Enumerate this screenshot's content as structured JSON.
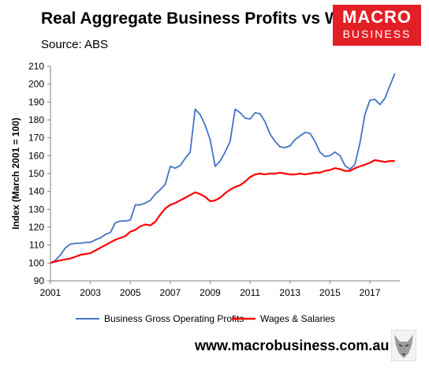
{
  "header": {
    "title": "Real Aggregate Business Profits vs Wages",
    "source": "Source: ABS"
  },
  "logo": {
    "line1": "MACRO",
    "line2": "BUSINESS",
    "color": "#e31f26"
  },
  "footer": {
    "website": "www.macrobusiness.com.au"
  },
  "chart_data": {
    "type": "line",
    "ylabel": "Index (March 2001 = 100)",
    "xlabel": "",
    "xlim": [
      2001,
      2018.5
    ],
    "ylim": [
      90,
      210
    ],
    "yticks": [
      90,
      100,
      110,
      120,
      130,
      140,
      150,
      160,
      170,
      180,
      190,
      200,
      210
    ],
    "xticks": [
      2001,
      2003,
      2005,
      2007,
      2009,
      2011,
      2013,
      2015,
      2017
    ],
    "grid": false,
    "legend": "bottom",
    "series": [
      {
        "name": "Business Gross Operating Profits",
        "color": "#4472c4",
        "x": [
          2001.0,
          2001.25,
          2001.5,
          2001.75,
          2002.0,
          2002.25,
          2002.5,
          2002.75,
          2003.0,
          2003.25,
          2003.5,
          2003.75,
          2004.0,
          2004.25,
          2004.5,
          2004.75,
          2005.0,
          2005.25,
          2005.5,
          2005.75,
          2006.0,
          2006.25,
          2006.5,
          2006.75,
          2007.0,
          2007.25,
          2007.5,
          2007.75,
          2008.0,
          2008.25,
          2008.5,
          2008.75,
          2009.0,
          2009.25,
          2009.5,
          2009.75,
          2010.0,
          2010.25,
          2010.5,
          2010.75,
          2011.0,
          2011.25,
          2011.5,
          2011.75,
          2012.0,
          2012.25,
          2012.5,
          2012.75,
          2013.0,
          2013.25,
          2013.5,
          2013.75,
          2014.0,
          2014.25,
          2014.5,
          2014.75,
          2015.0,
          2015.25,
          2015.5,
          2015.75,
          2016.0,
          2016.25,
          2016.5,
          2016.75,
          2017.0,
          2017.25,
          2017.5,
          2017.75,
          2018.0,
          2018.25
        ],
        "values": [
          100,
          101.5,
          104.5,
          108.5,
          110.5,
          111,
          111,
          111.5,
          111.5,
          113,
          114,
          116,
          117,
          122.5,
          123.5,
          123.5,
          124,
          132.5,
          132.5,
          133.5,
          135,
          138.5,
          141,
          144,
          154,
          153,
          154.5,
          158.5,
          162,
          186,
          183,
          177,
          169,
          154,
          157,
          162,
          168,
          186,
          184,
          181,
          180.5,
          184,
          183.5,
          179,
          172,
          168,
          165,
          164.5,
          165.5,
          169,
          171,
          173,
          172.5,
          168,
          162,
          159.5,
          160,
          162,
          160,
          154.5,
          152.5,
          155,
          167,
          183,
          191,
          191.5,
          188.5,
          192,
          199,
          206
        ]
      },
      {
        "name": "Wages & Salaries",
        "color": "#ff0000",
        "x": [
          2001.0,
          2001.25,
          2001.5,
          2001.75,
          2002.0,
          2002.25,
          2002.5,
          2002.75,
          2003.0,
          2003.25,
          2003.5,
          2003.75,
          2004.0,
          2004.25,
          2004.5,
          2004.75,
          2005.0,
          2005.25,
          2005.5,
          2005.75,
          2006.0,
          2006.25,
          2006.5,
          2006.75,
          2007.0,
          2007.25,
          2007.5,
          2007.75,
          2008.0,
          2008.25,
          2008.5,
          2008.75,
          2009.0,
          2009.25,
          2009.5,
          2009.75,
          2010.0,
          2010.25,
          2010.5,
          2010.75,
          2011.0,
          2011.25,
          2011.5,
          2011.75,
          2012.0,
          2012.25,
          2012.5,
          2012.75,
          2013.0,
          2013.25,
          2013.5,
          2013.75,
          2014.0,
          2014.25,
          2014.5,
          2014.75,
          2015.0,
          2015.25,
          2015.5,
          2015.75,
          2016.0,
          2016.25,
          2016.5,
          2016.75,
          2017.0,
          2017.25,
          2017.5,
          2017.75,
          2018.0,
          2018.25
        ],
        "values": [
          100,
          100.8,
          101.5,
          102,
          102.5,
          103.5,
          104.5,
          105,
          105.5,
          107,
          108.5,
          110,
          111.5,
          113,
          114,
          115,
          117.5,
          118.5,
          120.5,
          121.5,
          121,
          123,
          127,
          130.5,
          132.5,
          133.5,
          135,
          136.5,
          138,
          139.5,
          138.5,
          137,
          134.5,
          135,
          136.5,
          139,
          141,
          142.5,
          143.5,
          145.5,
          148,
          149.5,
          150,
          149.5,
          150,
          150,
          150.5,
          150,
          149.5,
          149.5,
          150,
          149.5,
          150,
          150.5,
          150.5,
          151.5,
          152,
          153,
          152.5,
          151.5,
          151.5,
          153,
          154,
          155,
          156,
          157.5,
          157,
          156.5,
          157,
          157
        ]
      }
    ]
  }
}
